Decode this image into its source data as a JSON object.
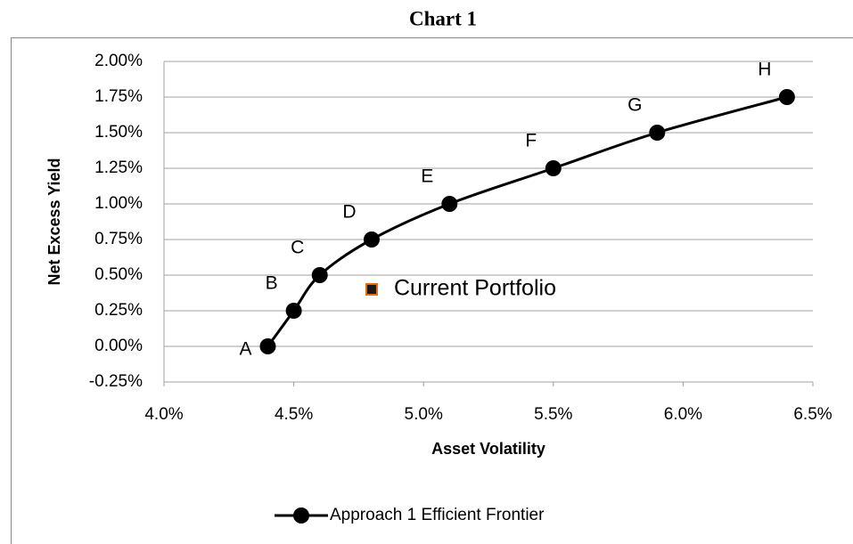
{
  "chart_data": {
    "type": "line",
    "title": "Chart 1",
    "x_label": "Asset Volatility",
    "y_label": "Net Excess Yield",
    "xlim": [
      4.0,
      6.5
    ],
    "xticks": [
      {
        "value": 4.0,
        "label": "4.0%"
      },
      {
        "value": 4.5,
        "label": "4.5%"
      },
      {
        "value": 5.0,
        "label": "5.0%"
      },
      {
        "value": 5.5,
        "label": "5.5%"
      },
      {
        "value": 6.0,
        "label": "6.0%"
      },
      {
        "value": 6.5,
        "label": "6.5%"
      }
    ],
    "ylim": [
      -0.25,
      2.0
    ],
    "yticks": [
      {
        "value": -0.25,
        "label": "-0.25%"
      },
      {
        "value": 0,
        "label": "0.00%"
      },
      {
        "value": 0.25,
        "label": "0.25%"
      },
      {
        "value": 0.5,
        "label": "0.50%"
      },
      {
        "value": 0.75,
        "label": "0.75%"
      },
      {
        "value": 1.0,
        "label": "1.00%"
      },
      {
        "value": 1.25,
        "label": "1.25%"
      },
      {
        "value": 1.5,
        "label": "1.50%"
      },
      {
        "value": 1.75,
        "label": "1.75%"
      },
      {
        "value": 2.0,
        "label": "2.00%"
      }
    ],
    "grid": true,
    "legend": "bottom",
    "series": [
      {
        "name": "Approach 1 Efficient Frontier",
        "color": "#000000",
        "smooth": true,
        "in_legend": true,
        "x": [
          4.4,
          4.5,
          4.6,
          4.8,
          5.1,
          5.5,
          5.9,
          6.4
        ],
        "values": [
          0,
          0.25,
          0.5,
          0.75,
          1.0,
          1.25,
          1.5,
          1.75
        ],
        "point_labels": [
          "A",
          "B",
          "C",
          "D",
          "E",
          "F",
          "G",
          "H"
        ]
      },
      {
        "name": "Current Portfolio",
        "color": "#e46c0a",
        "marker": "square",
        "in_legend": false,
        "x": [
          4.8
        ],
        "values": [
          0.4
        ]
      }
    ]
  }
}
